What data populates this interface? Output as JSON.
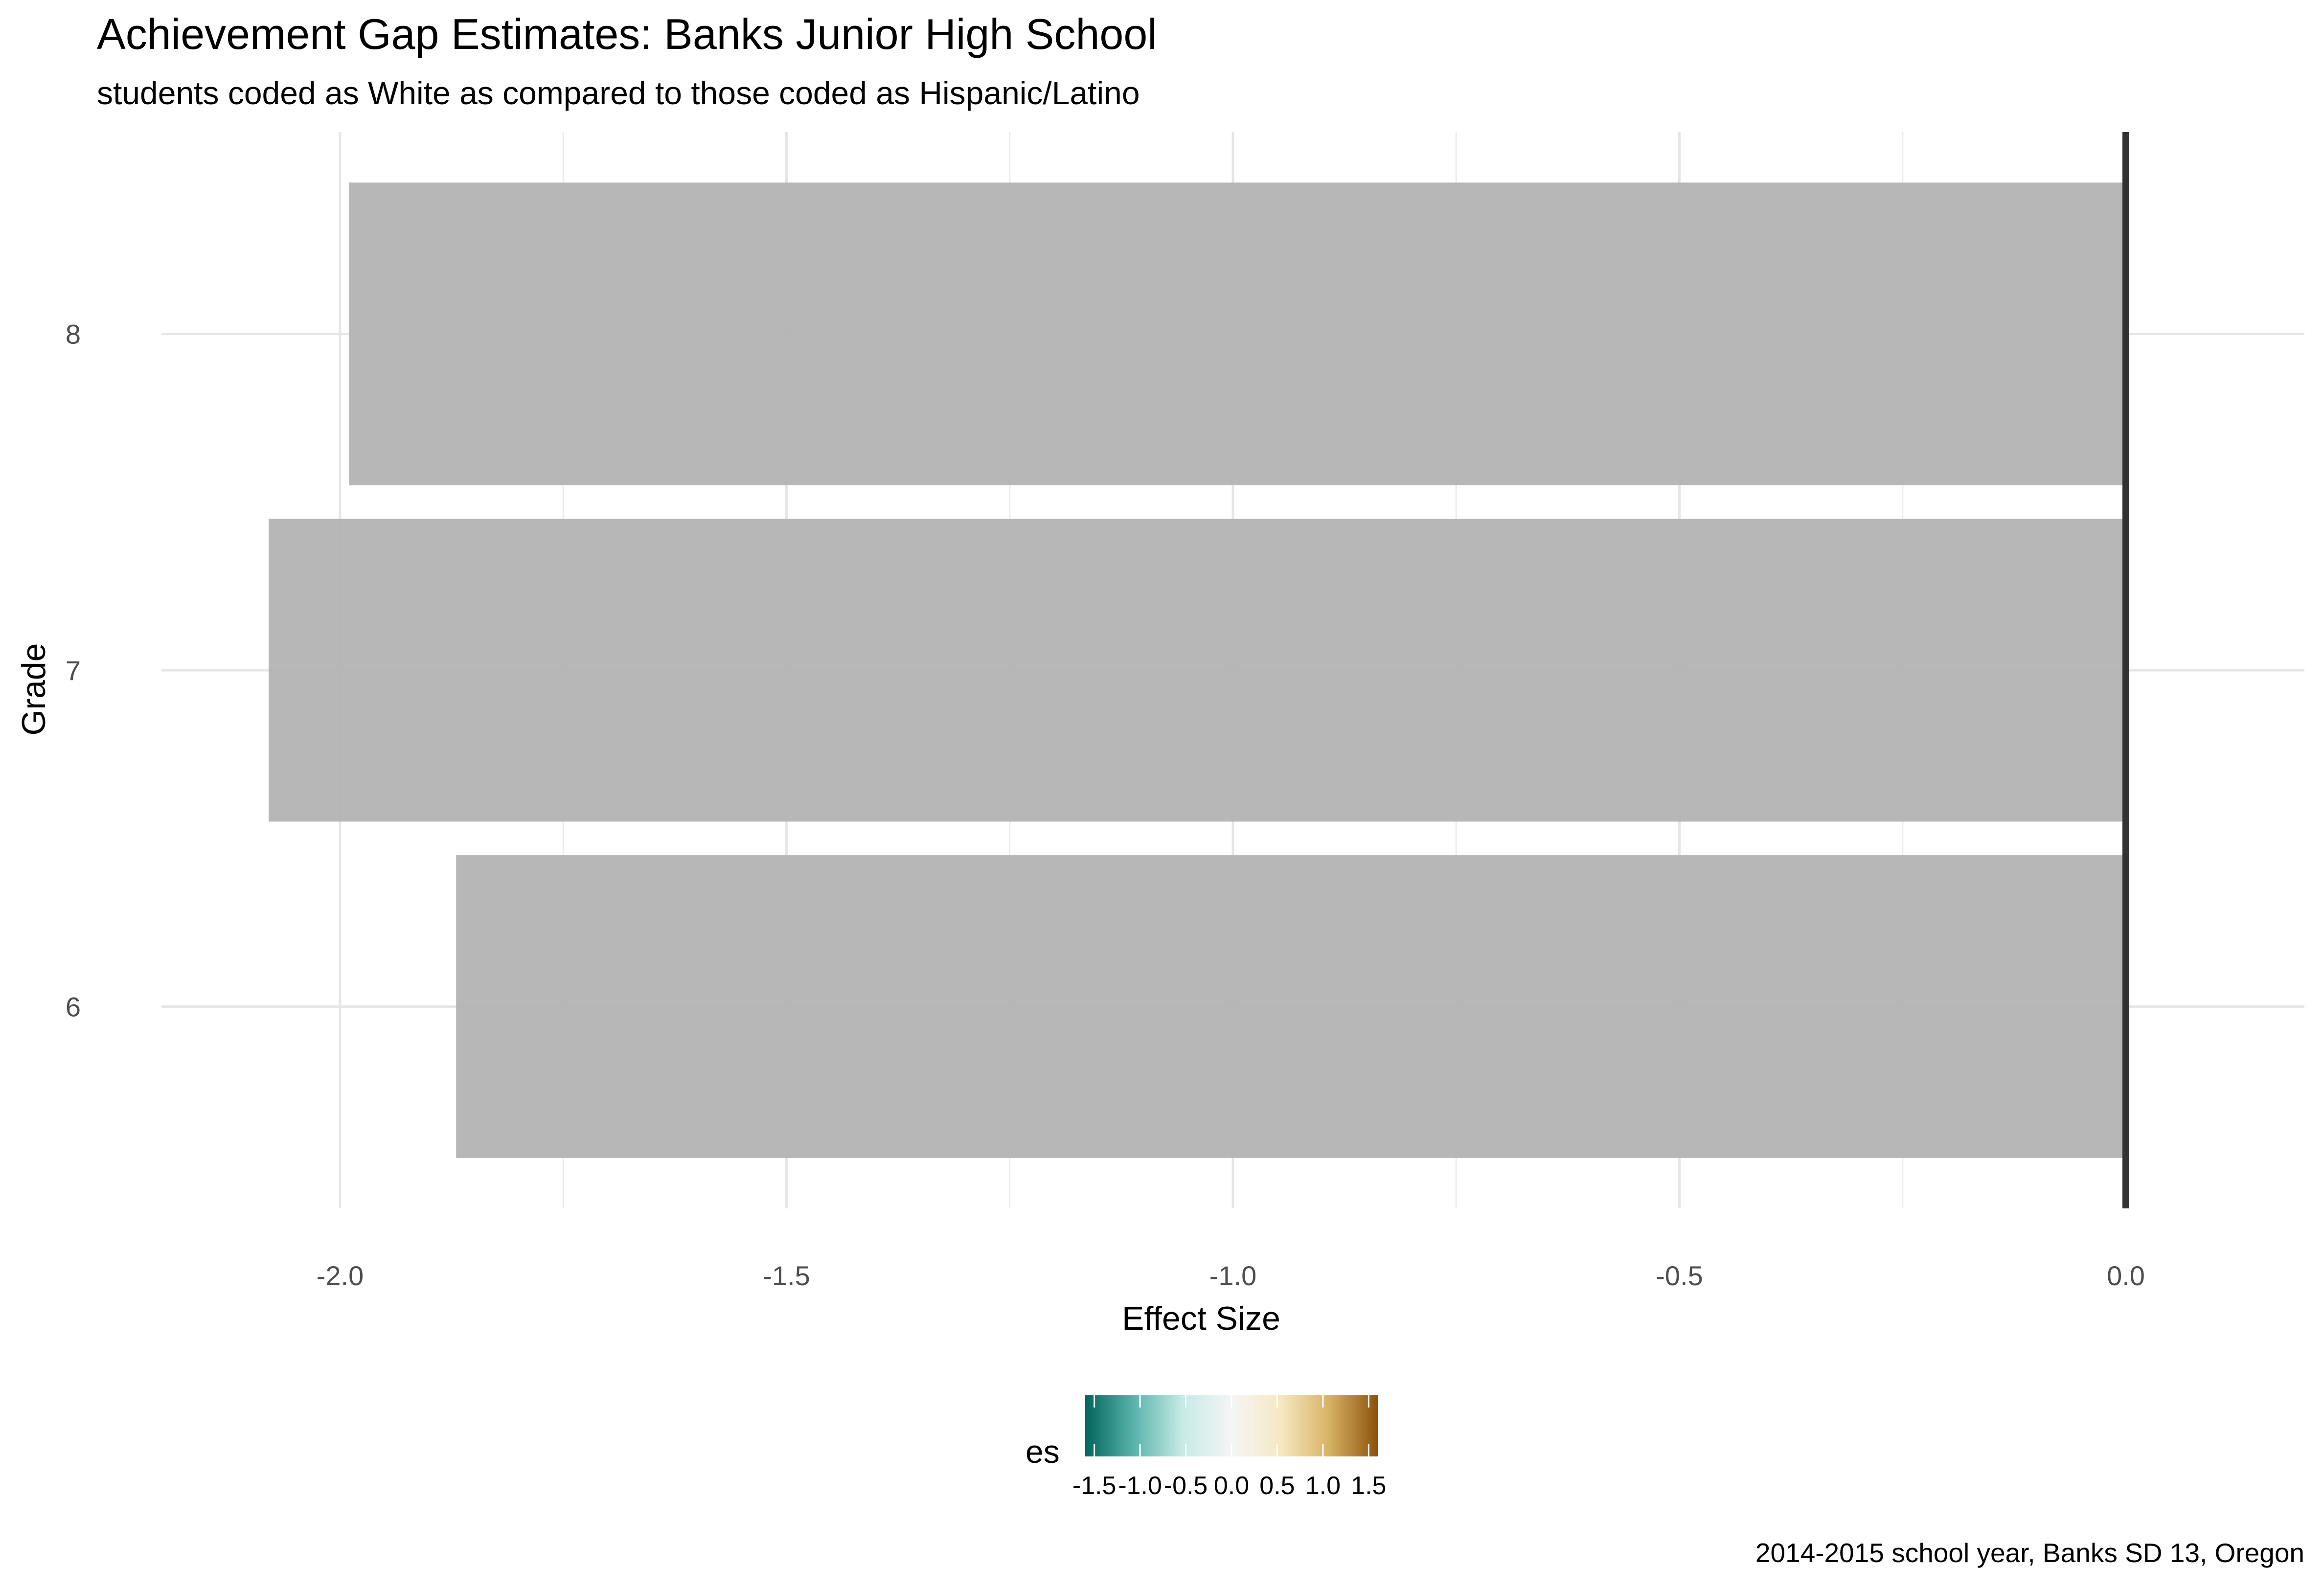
{
  "chart_data": {
    "type": "bar",
    "orientation": "horizontal",
    "title": "Achievement Gap Estimates: Banks Junior High School",
    "subtitle": "students coded as White as compared to those coded as Hispanic/Latino",
    "xlabel": "Effect Size",
    "ylabel": "Grade",
    "caption": "2014-2015 school year, Banks SD 13, Oregon",
    "categories": [
      "6",
      "7",
      "8"
    ],
    "values": [
      -1.87,
      -2.08,
      -1.99
    ],
    "xlim": [
      -2.2,
      0.2
    ],
    "x_ticks": [
      -2.0,
      -1.5,
      -1.0,
      -0.5,
      0.0
    ],
    "x_tick_labels": [
      "-2.0",
      "-1.5",
      "-1.0",
      "-0.5",
      "0.0"
    ],
    "grid": true,
    "bar_color": "#b3b3b3",
    "reference_line": {
      "x": 0.0,
      "color": "#333333"
    },
    "legend": {
      "title": "es",
      "placement": "bottom",
      "range": [
        -1.6,
        1.6
      ],
      "ticks": [
        -1.5,
        -1.0,
        -0.5,
        0.0,
        0.5,
        1.0,
        1.5
      ],
      "tick_labels": [
        "-1.5",
        "-1.0",
        "-0.5",
        "0.0",
        "0.5",
        "1.0",
        "1.5"
      ],
      "colors": [
        "#01665e",
        "#5ab4ac",
        "#c7eae5",
        "#f5f5f5",
        "#f6e8c3",
        "#d8b365",
        "#8c510a"
      ]
    }
  }
}
